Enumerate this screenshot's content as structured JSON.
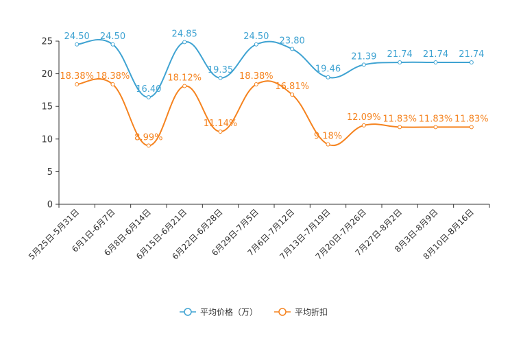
{
  "chart_data": {
    "type": "line",
    "categories": [
      "5月25日-5月31日",
      "6月1日-6月7日",
      "6月8日-6月14日",
      "6月15日-6月21日",
      "6月22日-6月28日",
      "6月29日-7月5日",
      "7月6日-7月12日",
      "7月13日-7月19日",
      "7月20日-7月26日",
      "7月27日-8月2日",
      "8月3日-8月9日",
      "8月10日-8月16日"
    ],
    "ylim": [
      0,
      25
    ],
    "yticks": [
      "0",
      "5",
      "10",
      "15",
      "20",
      "25"
    ],
    "series": [
      {
        "name": "平均价格（万）",
        "color": "#3fa3d2",
        "values": [
          24.5,
          24.5,
          16.4,
          24.85,
          19.35,
          24.5,
          23.8,
          19.46,
          21.39,
          21.74,
          21.74,
          21.74
        ],
        "labels": [
          "24.50",
          "24.50",
          "16.40",
          "24.85",
          "19.35",
          "24.50",
          "23.80",
          "19.46",
          "21.39",
          "21.74",
          "21.74",
          "21.74"
        ]
      },
      {
        "name": "平均折扣",
        "color": "#f5831f",
        "values": [
          18.38,
          18.38,
          8.99,
          18.12,
          11.14,
          18.38,
          16.81,
          9.18,
          12.09,
          11.83,
          11.83,
          11.83
        ],
        "labels": [
          "18.38%",
          "18.38%",
          "8.99%",
          "18.12%",
          "11.14%",
          "18.38%",
          "16.81%",
          "9.18%",
          "12.09%",
          "11.83%",
          "11.83%",
          "11.83%"
        ]
      }
    ],
    "legend_position": "bottom-center",
    "grid": false
  }
}
